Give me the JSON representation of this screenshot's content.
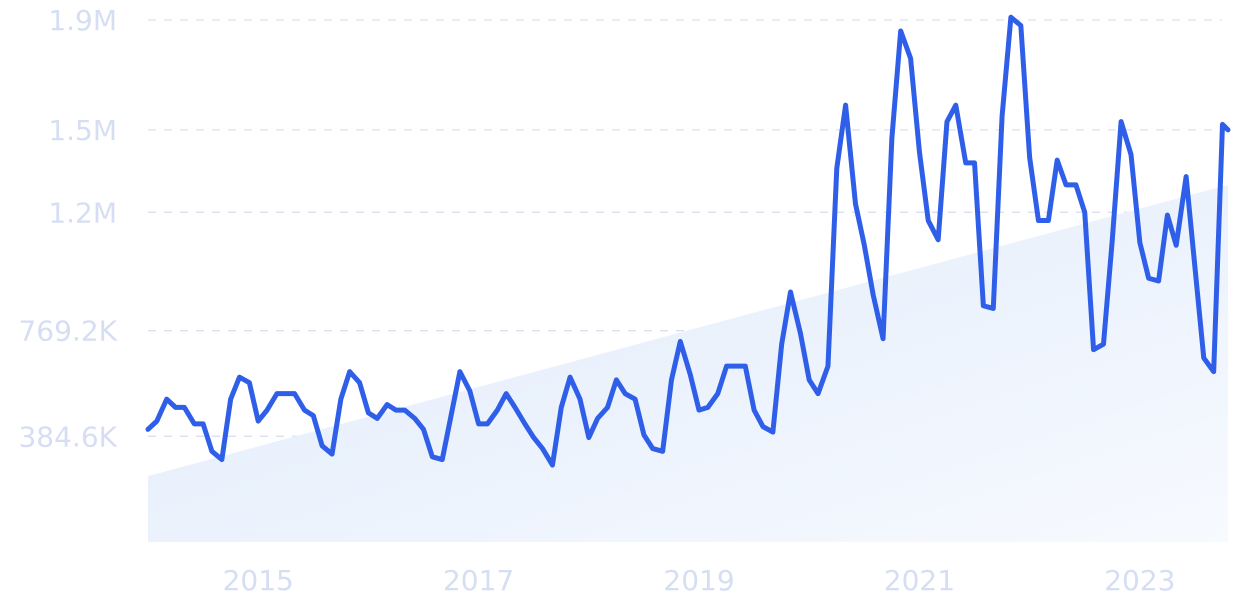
{
  "chart_data": {
    "type": "line",
    "title": "",
    "xlabel": "",
    "ylabel": "",
    "grid": true,
    "legend": "none",
    "xlim": [
      2014,
      2023.8
    ],
    "ylim": [
      0,
      1900000
    ],
    "xticks": [
      {
        "value": 2015,
        "label": "2015"
      },
      {
        "value": 2017,
        "label": "2017"
      },
      {
        "value": 2019,
        "label": "2019"
      },
      {
        "value": 2021,
        "label": "2021"
      },
      {
        "value": 2023,
        "label": "2023"
      }
    ],
    "yticks": [
      {
        "value": 384600,
        "label": "384.6K"
      },
      {
        "value": 769200,
        "label": "769.2K"
      },
      {
        "value": 1200000,
        "label": "1.2M"
      },
      {
        "value": 1500000,
        "label": "1.5M"
      },
      {
        "value": 1900000,
        "label": "1.9M"
      }
    ],
    "colors": {
      "line": "#2f5fe8",
      "trend_fill_start": "#dfeafa",
      "trend_fill_end": "#f7faff",
      "grid": "#d9e1f1",
      "tick_label": "#d6def3"
    },
    "trend": {
      "x": [
        2014,
        2023.8
      ],
      "y": [
        240000,
        1300000
      ]
    },
    "series": [
      {
        "x": [
          2014,
          2014.08,
          2014.17,
          2014.25,
          2014.33,
          2014.42,
          2014.5,
          2014.58,
          2014.67,
          2014.75,
          2014.83,
          2014.92,
          2015,
          2015.08,
          2015.17,
          2015.25,
          2015.33,
          2015.42,
          2015.5,
          2015.58,
          2015.67,
          2015.75,
          2015.83,
          2015.92,
          2016,
          2016.08,
          2016.17,
          2016.25,
          2016.33,
          2016.42,
          2016.5,
          2016.58,
          2016.67,
          2016.75,
          2016.83,
          2016.92,
          2017,
          2017.08,
          2017.17,
          2017.25,
          2017.33,
          2017.42,
          2017.5,
          2017.58,
          2017.67,
          2017.75,
          2017.83,
          2017.92,
          2018,
          2018.08,
          2018.17,
          2018.25,
          2018.33,
          2018.42,
          2018.5,
          2018.58,
          2018.67,
          2018.75,
          2018.83,
          2018.92,
          2019,
          2019.08,
          2019.17,
          2019.25,
          2019.33,
          2019.42,
          2019.5,
          2019.58,
          2019.67,
          2019.75,
          2019.83,
          2019.92,
          2020,
          2020.08,
          2020.17,
          2020.25,
          2020.33,
          2020.42,
          2020.5,
          2020.58,
          2020.67,
          2020.75,
          2020.83,
          2020.92,
          2021,
          2021.08,
          2021.17,
          2021.25,
          2021.33,
          2021.42,
          2021.5,
          2021.58,
          2021.67,
          2021.75,
          2021.83,
          2021.92,
          2022,
          2022.08,
          2022.17,
          2022.25,
          2022.33,
          2022.42,
          2022.5,
          2022.58,
          2022.67,
          2022.75,
          2022.83,
          2022.92,
          2023,
          2023.08,
          2023.17,
          2023.25,
          2023.33,
          2023.42,
          2023.5,
          2023.58,
          2023.67,
          2023.75,
          2023.8
        ],
        "y": [
          410000,
          440000,
          520000,
          490000,
          490000,
          430000,
          430000,
          330000,
          300000,
          520000,
          600000,
          580000,
          440000,
          480000,
          540000,
          540000,
          540000,
          480000,
          460000,
          350000,
          320000,
          520000,
          620000,
          580000,
          470000,
          450000,
          500000,
          480000,
          480000,
          450000,
          410000,
          310000,
          300000,
          460000,
          620000,
          550000,
          430000,
          430000,
          480000,
          540000,
          490000,
          430000,
          380000,
          340000,
          280000,
          490000,
          600000,
          520000,
          380000,
          450000,
          490000,
          590000,
          540000,
          520000,
          390000,
          340000,
          330000,
          590000,
          730000,
          610000,
          480000,
          490000,
          540000,
          640000,
          640000,
          640000,
          480000,
          420000,
          400000,
          720000,
          910000,
          760000,
          590000,
          540000,
          640000,
          1360000,
          1590000,
          1230000,
          1080000,
          900000,
          740000,
          1470000,
          1860000,
          1760000,
          1420000,
          1170000,
          1100000,
          1530000,
          1590000,
          1380000,
          1380000,
          860000,
          850000,
          1550000,
          1910000,
          1880000,
          1400000,
          1170000,
          1170000,
          1390000,
          1300000,
          1300000,
          1200000,
          700000,
          720000,
          1100000,
          1530000,
          1410000,
          1090000,
          960000,
          950000,
          1190000,
          1080000,
          1330000,
          1000000,
          670000,
          620000,
          1520000,
          1500000
        ]
      }
    ]
  }
}
